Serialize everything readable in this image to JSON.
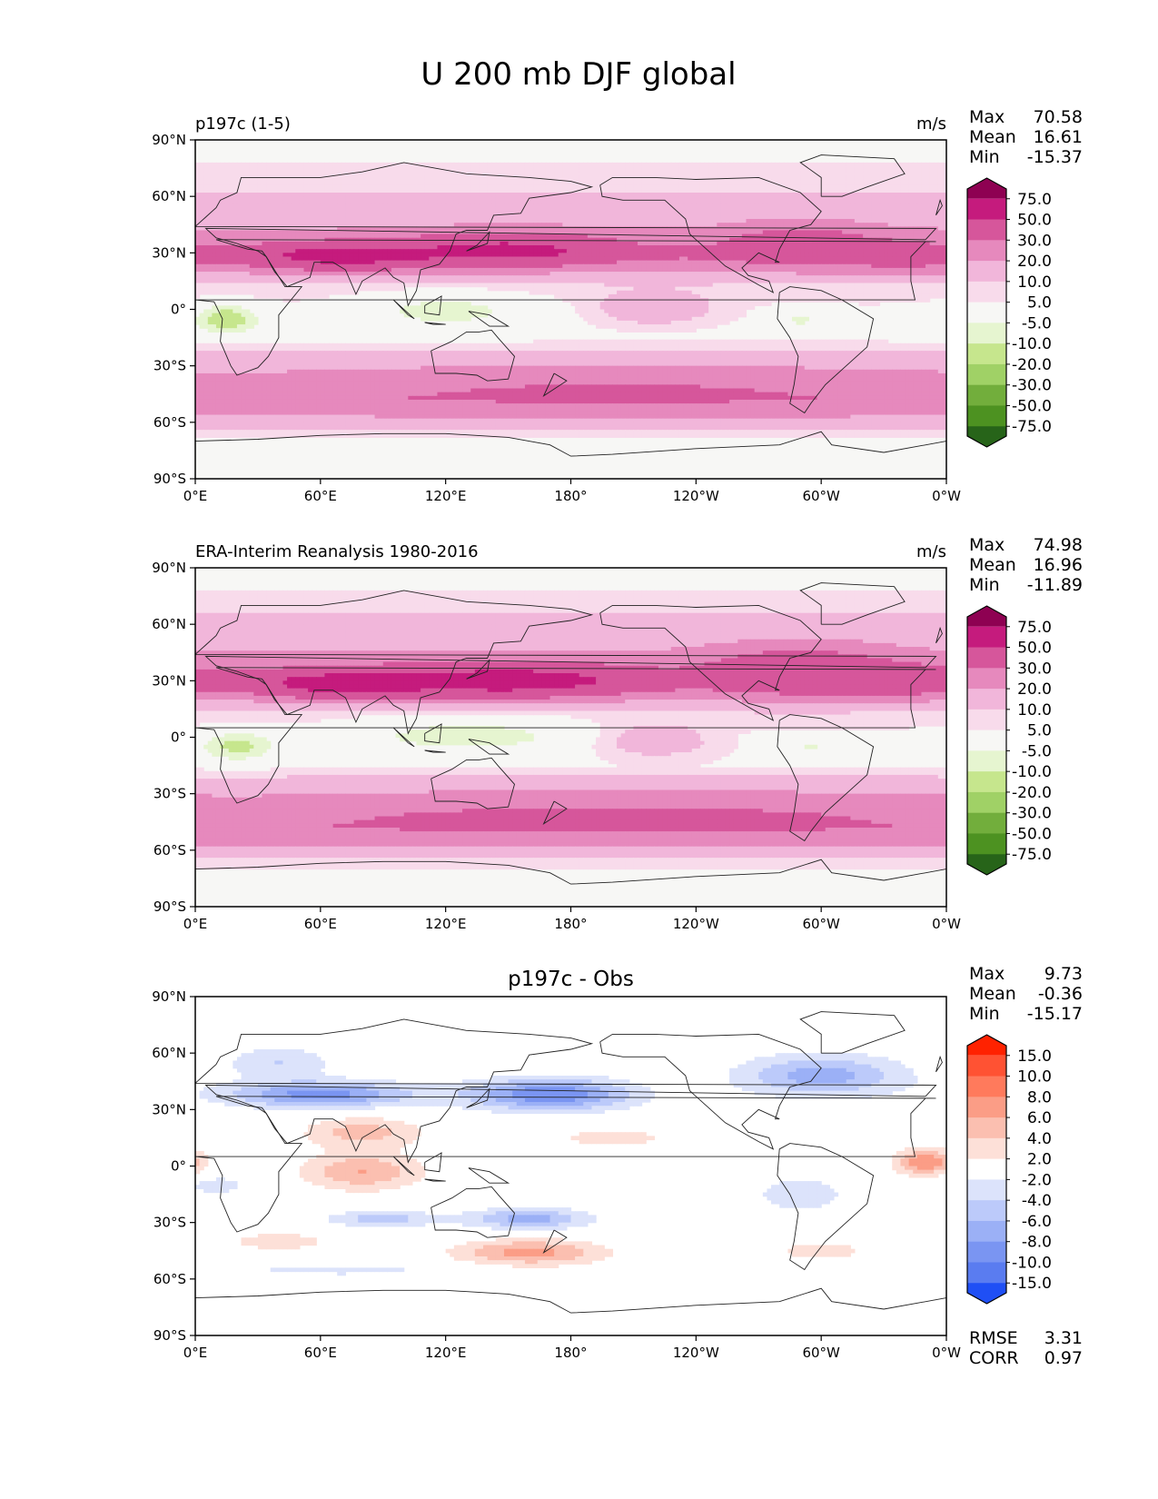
{
  "figure": {
    "title": "U 200 mb DJF global"
  },
  "chart_data": [
    {
      "type": "heatmap",
      "title": "p197c (1-5)",
      "title_position": "left",
      "units": "m/s",
      "stats": [
        {
          "label": "Max",
          "value": "70.58"
        },
        {
          "label": "Mean",
          "value": "16.61"
        },
        {
          "label": "Min",
          "value": "-15.37"
        }
      ],
      "x_ticks": [
        "0°E",
        "60°E",
        "120°E",
        "180°",
        "120°W",
        "60°W",
        "0°W"
      ],
      "x_lon": [
        0,
        60,
        120,
        180,
        240,
        300,
        360
      ],
      "y_ticks": [
        "90°N",
        "60°N",
        "30°N",
        "0°",
        "30°S",
        "60°S",
        "90°S"
      ],
      "y_lat": [
        90,
        60,
        30,
        0,
        -30,
        -60,
        -90
      ],
      "colorbar": {
        "labels": [
          "75.0",
          "50.0",
          "30.0",
          "20.0",
          "10.0",
          "5.0",
          "-5.0",
          "-10.0",
          "-20.0",
          "-30.0",
          "-50.0",
          "-75.0"
        ],
        "colors": [
          "#8e0152",
          "#c51b7d",
          "#d6569b",
          "#e689bd",
          "#f1b6da",
          "#f8dbeb",
          "#f7f7f5",
          "#e6f5d0",
          "#c6e68d",
          "#a0d166",
          "#72ae3c",
          "#4d9221",
          "#276419"
        ]
      },
      "field": {
        "base": [
          [
            90,
            0
          ],
          [
            75,
            6
          ],
          [
            62,
            10
          ],
          [
            45,
            18
          ],
          [
            35,
            25
          ],
          [
            30,
            32
          ],
          [
            22,
            22
          ],
          [
            12,
            8
          ],
          [
            0,
            4
          ],
          [
            -15,
            3
          ],
          [
            -28,
            14
          ],
          [
            -40,
            22
          ],
          [
            -48,
            26
          ],
          [
            -58,
            18
          ],
          [
            -66,
            6
          ],
          [
            -75,
            1
          ],
          [
            -90,
            0
          ]
        ],
        "blobs": [
          {
            "lon": 70,
            "lat": 28,
            "rlon": 30,
            "rlat": 5,
            "amp": 30
          },
          {
            "lon": 150,
            "lat": 32,
            "rlon": 34,
            "rlat": 6,
            "amp": 28
          },
          {
            "lon": 290,
            "lat": 35,
            "rlon": 25,
            "rlat": 8,
            "amp": 16
          },
          {
            "lon": 340,
            "lat": 28,
            "rlon": 18,
            "rlat": 6,
            "amp": 10
          },
          {
            "lon": 15,
            "lat": -5,
            "rlon": 12,
            "rlat": 6,
            "amp": -18
          },
          {
            "lon": 120,
            "lat": 0,
            "rlon": 30,
            "rlat": 7,
            "amp": -12
          },
          {
            "lon": 290,
            "lat": -5,
            "rlon": 8,
            "rlat": 4,
            "amp": -10
          },
          {
            "lon": 220,
            "lat": 0,
            "rlon": 20,
            "rlat": 6,
            "amp": 14
          },
          {
            "lon": 200,
            "lat": -40,
            "rlon": 120,
            "rlat": 10,
            "amp": 8
          }
        ]
      }
    },
    {
      "type": "heatmap",
      "title": "ERA-Interim Reanalysis 1980-2016",
      "title_position": "left",
      "units": "m/s",
      "stats": [
        {
          "label": "Max",
          "value": "74.98"
        },
        {
          "label": "Mean",
          "value": "16.96"
        },
        {
          "label": "Min",
          "value": "-11.89"
        }
      ],
      "x_ticks": [
        "0°E",
        "60°E",
        "120°E",
        "180°",
        "120°W",
        "60°W",
        "0°W"
      ],
      "x_lon": [
        0,
        60,
        120,
        180,
        240,
        300,
        360
      ],
      "y_ticks": [
        "90°N",
        "60°N",
        "30°N",
        "0°",
        "30°S",
        "60°S",
        "90°S"
      ],
      "y_lat": [
        90,
        60,
        30,
        0,
        -30,
        -60,
        -90
      ],
      "colorbar": {
        "labels": [
          "75.0",
          "50.0",
          "30.0",
          "20.0",
          "10.0",
          "5.0",
          "-5.0",
          "-10.0",
          "-20.0",
          "-30.0",
          "-50.0",
          "-75.0"
        ],
        "colors": [
          "#8e0152",
          "#c51b7d",
          "#d6569b",
          "#e689bd",
          "#f1b6da",
          "#f8dbeb",
          "#f7f7f5",
          "#e6f5d0",
          "#c6e68d",
          "#a0d166",
          "#72ae3c",
          "#4d9221",
          "#276419"
        ]
      },
      "field": {
        "base": [
          [
            90,
            0
          ],
          [
            75,
            6
          ],
          [
            62,
            12
          ],
          [
            45,
            20
          ],
          [
            35,
            27
          ],
          [
            30,
            32
          ],
          [
            22,
            22
          ],
          [
            12,
            8
          ],
          [
            0,
            3
          ],
          [
            -15,
            4
          ],
          [
            -28,
            16
          ],
          [
            -40,
            24
          ],
          [
            -48,
            27
          ],
          [
            -58,
            20
          ],
          [
            -66,
            7
          ],
          [
            -75,
            1
          ],
          [
            -90,
            0
          ]
        ],
        "blobs": [
          {
            "lon": 70,
            "lat": 28,
            "rlon": 28,
            "rlat": 5,
            "amp": 32
          },
          {
            "lon": 150,
            "lat": 30,
            "rlon": 40,
            "rlat": 6,
            "amp": 34
          },
          {
            "lon": 290,
            "lat": 36,
            "rlon": 28,
            "rlat": 9,
            "amp": 20
          },
          {
            "lon": 340,
            "lat": 30,
            "rlon": 18,
            "rlat": 6,
            "amp": 12
          },
          {
            "lon": 20,
            "lat": -5,
            "rlon": 14,
            "rlat": 6,
            "amp": -15
          },
          {
            "lon": 130,
            "lat": 2,
            "rlon": 40,
            "rlat": 8,
            "amp": -12
          },
          {
            "lon": 295,
            "lat": -5,
            "rlon": 6,
            "rlat": 3,
            "amp": -9
          },
          {
            "lon": 220,
            "lat": -2,
            "rlon": 20,
            "rlat": 6,
            "amp": 14
          },
          {
            "lon": 200,
            "lat": -40,
            "rlon": 120,
            "rlat": 10,
            "amp": 8
          }
        ]
      }
    },
    {
      "type": "heatmap",
      "title": "p197c - Obs",
      "title_position": "center",
      "units": "",
      "stats": [
        {
          "label": "Max",
          "value": "9.73"
        },
        {
          "label": "Mean",
          "value": "-0.36"
        },
        {
          "label": "Min",
          "value": "-15.17"
        }
      ],
      "extra_stats": [
        {
          "label": "RMSE",
          "value": "3.31"
        },
        {
          "label": "CORR",
          "value": "0.97"
        }
      ],
      "x_ticks": [
        "0°E",
        "60°E",
        "120°E",
        "180°",
        "120°W",
        "60°W",
        "0°W"
      ],
      "x_lon": [
        0,
        60,
        120,
        180,
        240,
        300,
        360
      ],
      "y_ticks": [
        "90°N",
        "60°N",
        "30°N",
        "0°",
        "30°S",
        "60°S",
        "90°S"
      ],
      "y_lat": [
        90,
        60,
        30,
        0,
        -30,
        -60,
        -90
      ],
      "colorbar": {
        "labels": [
          "15.0",
          "10.0",
          "8.0",
          "6.0",
          "4.0",
          "2.0",
          "-2.0",
          "-4.0",
          "-6.0",
          "-8.0",
          "-10.0",
          "-15.0"
        ],
        "colors": [
          "#ff2200",
          "#ff5233",
          "#ff7a5c",
          "#fb9d86",
          "#fbbfb0",
          "#fde0d8",
          "#ffffff",
          "#dce3fb",
          "#bccafa",
          "#9bb0f6",
          "#7a95f2",
          "#5a7cf0",
          "#1f4ff5"
        ]
      },
      "field": {
        "base": [
          [
            90,
            0
          ],
          [
            -90,
            0
          ]
        ],
        "blobs": [
          {
            "lon": 60,
            "lat": 38,
            "rlon": 32,
            "rlat": 5,
            "amp": -9
          },
          {
            "lon": 170,
            "lat": 38,
            "rlon": 28,
            "rlat": 6,
            "amp": -10
          },
          {
            "lon": 300,
            "lat": 48,
            "rlon": 28,
            "rlat": 8,
            "amp": -7
          },
          {
            "lon": 40,
            "lat": 55,
            "rlon": 18,
            "rlat": 6,
            "amp": -4
          },
          {
            "lon": 80,
            "lat": 18,
            "rlon": 20,
            "rlat": 6,
            "amp": 5
          },
          {
            "lon": 80,
            "lat": -3,
            "rlon": 20,
            "rlat": 7,
            "amp": 6
          },
          {
            "lon": 350,
            "lat": 2,
            "rlon": 10,
            "rlat": 5,
            "amp": 8
          },
          {
            "lon": 160,
            "lat": -28,
            "rlon": 20,
            "rlat": 4,
            "amp": -7
          },
          {
            "lon": 90,
            "lat": -28,
            "rlon": 20,
            "rlat": 3,
            "amp": -5
          },
          {
            "lon": 160,
            "lat": -46,
            "rlon": 25,
            "rlat": 5,
            "amp": 7
          },
          {
            "lon": 40,
            "lat": -40,
            "rlon": 20,
            "rlat": 4,
            "amp": 3
          },
          {
            "lon": 70,
            "lat": -55,
            "rlon": 50,
            "rlat": 3,
            "amp": -2.5
          },
          {
            "lon": 290,
            "lat": -15,
            "rlon": 15,
            "rlat": 6,
            "amp": -4
          },
          {
            "lon": 10,
            "lat": -10,
            "rlon": 12,
            "rlat": 4,
            "amp": -3
          },
          {
            "lon": 200,
            "lat": 15,
            "rlon": 30,
            "rlat": 5,
            "amp": 2.5
          },
          {
            "lon": 300,
            "lat": -45,
            "rlon": 25,
            "rlat": 5,
            "amp": 2.5
          }
        ]
      }
    }
  ]
}
